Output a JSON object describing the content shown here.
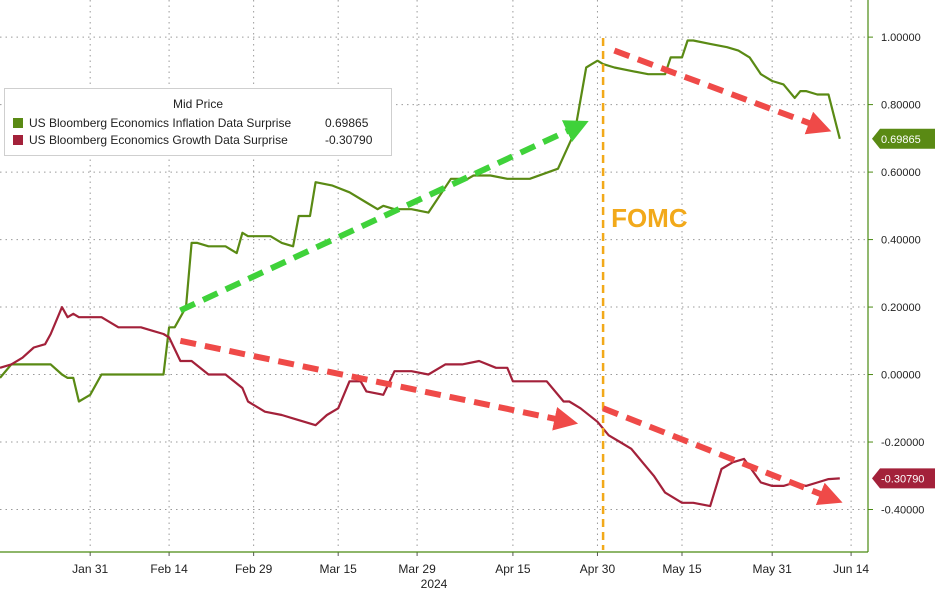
{
  "chart_data": {
    "type": "line",
    "title": "",
    "legend": {
      "title": "Mid Price",
      "placement": "top-left",
      "items": [
        {
          "name": "US Bloomberg Economics Inflation Data Surprise",
          "value": "0.69865",
          "color": "#5a8a14"
        },
        {
          "name": "US Bloomberg Economics Growth Data Surprise",
          "value": "-0.30790",
          "color": "#a3213a"
        }
      ]
    },
    "x_axis": {
      "ticks": [
        "Jan 31",
        "Feb 14",
        "Feb 29",
        "Mar 15",
        "Mar 29",
        "Apr 15",
        "Apr 30",
        "May 15",
        "May 31",
        "Jun 14"
      ],
      "year_label": "2024",
      "range": [
        "2024-01-15",
        "2024-06-17"
      ]
    },
    "y_axis": {
      "side": "right",
      "ticks": [
        "-0.40000",
        "-0.20000",
        "0.00000",
        "0.20000",
        "0.40000",
        "0.60000",
        "0.80000",
        "1.00000"
      ],
      "range": [
        -0.52,
        1.11
      ]
    },
    "grid": true,
    "series": [
      {
        "name": "US Bloomberg Economics Inflation Data Surprise",
        "color": "#5a8a14",
        "last_value": "0.69865",
        "x": [
          "2024-01-15",
          "2024-01-17",
          "2024-01-18",
          "2024-01-20",
          "2024-01-22",
          "2024-01-24",
          "2024-01-26",
          "2024-01-27",
          "2024-01-28",
          "2024-01-29",
          "2024-01-31",
          "2024-02-02",
          "2024-02-05",
          "2024-02-08",
          "2024-02-11",
          "2024-02-13",
          "2024-02-14",
          "2024-02-15",
          "2024-02-17",
          "2024-02-18",
          "2024-02-19",
          "2024-02-21",
          "2024-02-24",
          "2024-02-26",
          "2024-02-27",
          "2024-02-28",
          "2024-03-03",
          "2024-03-05",
          "2024-03-07",
          "2024-03-08",
          "2024-03-10",
          "2024-03-11",
          "2024-03-14",
          "2024-03-17",
          "2024-03-20",
          "2024-03-22",
          "2024-03-23",
          "2024-03-25",
          "2024-03-28",
          "2024-03-31",
          "2024-04-04",
          "2024-04-07",
          "2024-04-08",
          "2024-04-11",
          "2024-04-14",
          "2024-04-18",
          "2024-04-23",
          "2024-04-26",
          "2024-04-28",
          "2024-04-29",
          "2024-04-30",
          "2024-05-01",
          "2024-05-03",
          "2024-05-06",
          "2024-05-09",
          "2024-05-12",
          "2024-05-13",
          "2024-05-14",
          "2024-05-15",
          "2024-05-16",
          "2024-05-17",
          "2024-05-20",
          "2024-05-23",
          "2024-05-25",
          "2024-05-27",
          "2024-05-29",
          "2024-05-31",
          "2024-06-02",
          "2024-06-04",
          "2024-06-05",
          "2024-06-06",
          "2024-06-08",
          "2024-06-10",
          "2024-06-12"
        ],
        "y": [
          -0.01,
          0.03,
          0.03,
          0.03,
          0.03,
          0.03,
          0.0,
          -0.01,
          -0.01,
          -0.08,
          -0.06,
          0.0,
          0.0,
          0.0,
          0.0,
          0.0,
          0.14,
          0.14,
          0.2,
          0.39,
          0.39,
          0.38,
          0.38,
          0.36,
          0.42,
          0.41,
          0.41,
          0.39,
          0.38,
          0.47,
          0.47,
          0.57,
          0.56,
          0.54,
          0.51,
          0.49,
          0.5,
          0.49,
          0.49,
          0.48,
          0.58,
          0.58,
          0.59,
          0.59,
          0.58,
          0.58,
          0.61,
          0.72,
          0.91,
          0.92,
          0.93,
          0.92,
          0.91,
          0.9,
          0.89,
          0.89,
          0.94,
          0.94,
          0.94,
          0.99,
          0.99,
          0.98,
          0.97,
          0.96,
          0.94,
          0.89,
          0.87,
          0.86,
          0.82,
          0.84,
          0.84,
          0.83,
          0.83,
          0.69865
        ]
      },
      {
        "name": "US Bloomberg Economics Growth Data Surprise",
        "color": "#a3213a",
        "last_value": "-0.30790",
        "x": [
          "2024-01-15",
          "2024-01-17",
          "2024-01-19",
          "2024-01-21",
          "2024-01-23",
          "2024-01-24",
          "2024-01-26",
          "2024-01-27",
          "2024-01-28",
          "2024-01-29",
          "2024-01-31",
          "2024-02-02",
          "2024-02-05",
          "2024-02-07",
          "2024-02-09",
          "2024-02-11",
          "2024-02-13",
          "2024-02-14",
          "2024-02-16",
          "2024-02-18",
          "2024-02-21",
          "2024-02-24",
          "2024-02-27",
          "2024-02-28",
          "2024-03-02",
          "2024-03-05",
          "2024-03-07",
          "2024-03-09",
          "2024-03-11",
          "2024-03-13",
          "2024-03-15",
          "2024-03-17",
          "2024-03-19",
          "2024-03-20",
          "2024-03-23",
          "2024-03-25",
          "2024-03-28",
          "2024-03-31",
          "2024-04-03",
          "2024-04-06",
          "2024-04-09",
          "2024-04-12",
          "2024-04-14",
          "2024-04-15",
          "2024-04-18",
          "2024-04-21",
          "2024-04-24",
          "2024-04-25",
          "2024-04-27",
          "2024-04-30",
          "2024-05-02",
          "2024-05-04",
          "2024-05-06",
          "2024-05-08",
          "2024-05-10",
          "2024-05-12",
          "2024-05-15",
          "2024-05-17",
          "2024-05-20",
          "2024-05-22",
          "2024-05-24",
          "2024-05-26",
          "2024-05-29",
          "2024-05-31",
          "2024-06-02",
          "2024-06-04",
          "2024-06-06",
          "2024-06-08",
          "2024-06-10",
          "2024-06-12"
        ],
        "y": [
          0.02,
          0.03,
          0.05,
          0.08,
          0.09,
          0.12,
          0.2,
          0.17,
          0.18,
          0.17,
          0.17,
          0.17,
          0.14,
          0.14,
          0.14,
          0.13,
          0.12,
          0.11,
          0.04,
          0.04,
          0.0,
          0.0,
          -0.04,
          -0.08,
          -0.11,
          -0.12,
          -0.13,
          -0.14,
          -0.15,
          -0.12,
          -0.1,
          -0.02,
          -0.02,
          -0.05,
          -0.06,
          0.01,
          0.01,
          0.0,
          0.03,
          0.03,
          0.04,
          0.02,
          0.02,
          -0.02,
          -0.02,
          -0.02,
          -0.08,
          -0.08,
          -0.1,
          -0.14,
          -0.18,
          -0.2,
          -0.22,
          -0.26,
          -0.3,
          -0.35,
          -0.38,
          -0.38,
          -0.39,
          -0.28,
          -0.26,
          -0.25,
          -0.32,
          -0.33,
          -0.33,
          -0.32,
          -0.33,
          -0.32,
          -0.31,
          -0.3079
        ]
      }
    ],
    "annotations": [
      {
        "type": "vline",
        "x": "2024-05-01",
        "label": "FOMC",
        "color": "#f2a91a"
      }
    ]
  }
}
